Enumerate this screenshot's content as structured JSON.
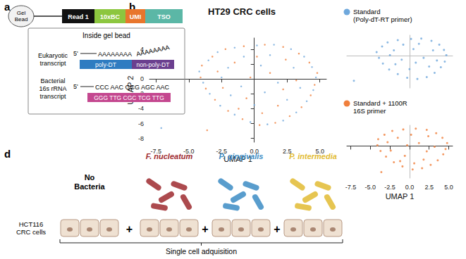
{
  "panel_labels": [
    "a",
    "b",
    "d"
  ],
  "panel_a": {
    "bead": "Gel Bead",
    "bar_segments": [
      "Read 1",
      "10xBC",
      "UMI",
      "TSO"
    ],
    "box_title": "Inside gel bead",
    "eukaryotic": {
      "label": "Eukaryotic transcript",
      "five_prime": "5'",
      "transcript": "AAAAAAAA",
      "tail": "AAAAAAAA",
      "primers": [
        "poly-DT",
        "non-poly-DT"
      ]
    },
    "bacterial": {
      "label": "Bacterial 16s rRNA transcript",
      "five_prime": "5'",
      "transcript": "CCC AAC GCG AGC AAC",
      "primer": "GGG TTG CGC TCG TTG"
    }
  },
  "chart_data": {
    "type": "scatter",
    "title": "HT29 CRC cells",
    "x_label": "UMAP 1",
    "y_label": "UMAP 2",
    "xlim": [
      -8,
      5.5
    ],
    "ylim": [
      -8.5,
      5.5
    ],
    "xticks": [
      {
        "value": -7.5,
        "label": "-7.5"
      },
      {
        "value": -5,
        "label": "-5.0"
      },
      {
        "value": -2.5,
        "label": "-2.5"
      },
      {
        "value": 0,
        "label": "0.0"
      },
      {
        "value": 2.5,
        "label": "2.5"
      },
      {
        "value": 5,
        "label": "5.0"
      }
    ],
    "yticks": [
      4,
      2,
      0,
      -2,
      -4,
      -6,
      -8
    ],
    "grid": false,
    "series": [
      {
        "name": "Standard (Poly-dT-RT primer)",
        "color": "#6fa8dc",
        "points": [
          [
            -3.5,
            2.5
          ],
          [
            -2.8,
            3.6
          ],
          [
            -1.5,
            4.2
          ],
          [
            0.2,
            4.5
          ],
          [
            1.5,
            4.6
          ],
          [
            2.8,
            4.0
          ],
          [
            3.8,
            3.0
          ],
          [
            4.4,
            1.6
          ],
          [
            4.7,
            0.2
          ],
          [
            4.5,
            -1.5
          ],
          [
            4.0,
            -3.0
          ],
          [
            3.2,
            -4.5
          ],
          [
            2.2,
            -5.6
          ],
          [
            1.0,
            -6.1
          ],
          [
            -0.3,
            -5.8
          ],
          [
            -1.5,
            -4.8
          ],
          [
            -2.6,
            -3.6
          ],
          [
            -3.4,
            -2.0
          ],
          [
            -3.9,
            -0.5
          ],
          [
            -4.2,
            1.0
          ],
          [
            -2.0,
            1.5
          ],
          [
            -1.0,
            -1.0
          ],
          [
            0.5,
            1.8
          ],
          [
            1.8,
            -0.5
          ],
          [
            3.0,
            1.5
          ],
          [
            2.5,
            -2.8
          ],
          [
            0.0,
            -3.5
          ],
          [
            -1.8,
            -2.2
          ],
          [
            -0.8,
            3.0
          ],
          [
            1.2,
            3.2
          ],
          [
            3.5,
            -1.2
          ],
          [
            -2.5,
            0.2
          ],
          [
            0.8,
            -1.8
          ],
          [
            -7.1,
            -6.6
          ]
        ]
      },
      {
        "name": "Standard + 1100R 16S primer",
        "color": "#f07f3c",
        "points": [
          [
            -3.2,
            3.0
          ],
          [
            -2.2,
            4.0
          ],
          [
            -0.8,
            4.4
          ],
          [
            0.8,
            4.6
          ],
          [
            2.2,
            4.3
          ],
          [
            3.4,
            3.4
          ],
          [
            4.2,
            2.2
          ],
          [
            4.8,
            0.8
          ],
          [
            4.6,
            -0.8
          ],
          [
            4.3,
            -2.2
          ],
          [
            3.6,
            -3.8
          ],
          [
            2.7,
            -5.0
          ],
          [
            1.6,
            -5.9
          ],
          [
            0.4,
            -6.2
          ],
          [
            -0.9,
            -5.4
          ],
          [
            -2.0,
            -4.3
          ],
          [
            -3.0,
            -2.8
          ],
          [
            -3.7,
            -1.3
          ],
          [
            -4.1,
            0.2
          ],
          [
            -4.0,
            1.8
          ],
          [
            -1.5,
            2.2
          ],
          [
            -0.3,
            0.2
          ],
          [
            1.2,
            0.8
          ],
          [
            2.4,
            2.6
          ],
          [
            3.2,
            -0.2
          ],
          [
            1.8,
            -3.6
          ],
          [
            -0.6,
            -2.6
          ],
          [
            -2.4,
            -1.2
          ],
          [
            0.2,
            3.0
          ],
          [
            -1.2,
            -4.0
          ],
          [
            2.2,
            -1.4
          ],
          [
            -2.8,
            1.0
          ],
          [
            0.6,
            -4.6
          ],
          [
            -3.6,
            -6.9
          ]
        ]
      }
    ]
  },
  "panel_d": {
    "groups": [
      "No Bacteria",
      "F. nucleatum",
      "P. gingivalis",
      "P. intermedia"
    ],
    "cells_label": "HCT116 CRC cells",
    "separator": "+",
    "caption": "Single cell adquisition"
  }
}
